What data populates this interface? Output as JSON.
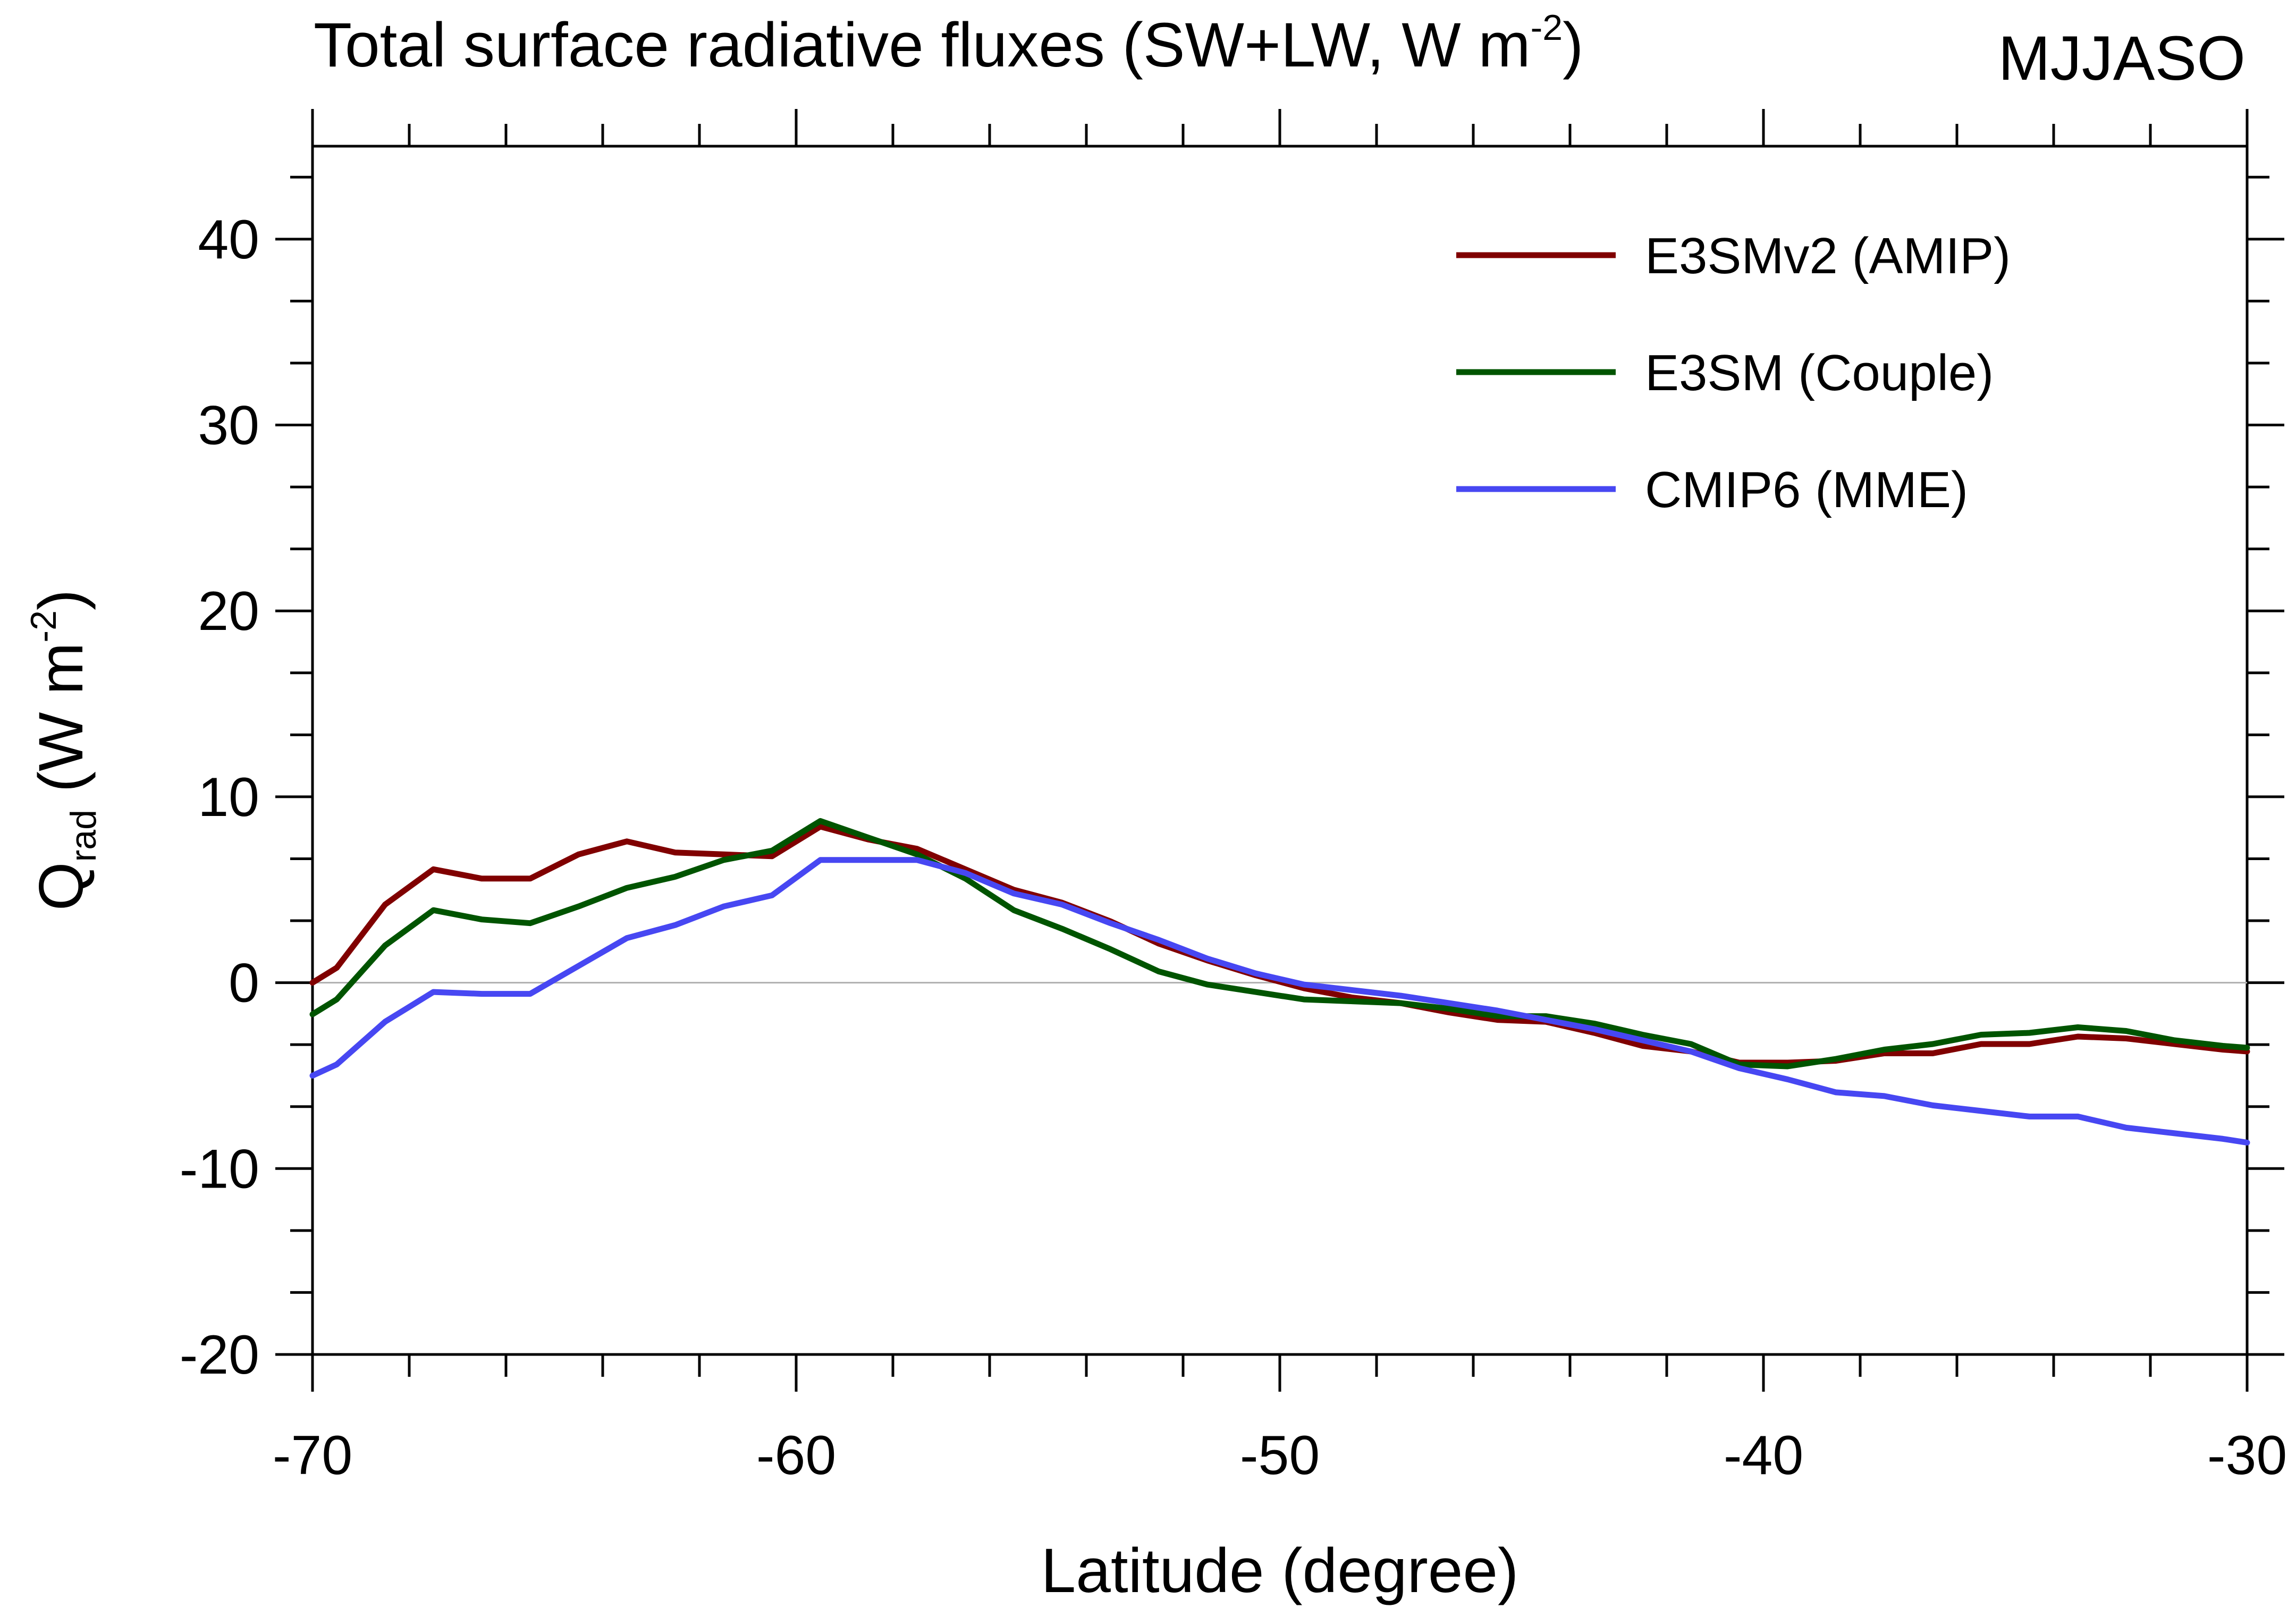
{
  "chart_data": {
    "type": "line",
    "title": "Total surface radiative fluxes (SW+LW, W m",
    "title_superscript": "-2",
    "title_suffix": ")",
    "season_label": "MJJASO",
    "xlabel": "Latitude (degree)",
    "ylabel_main": "Q",
    "ylabel_subscript": "rad",
    "ylabel_units": " (W m",
    "ylabel_superscript": "-2",
    "ylabel_suffix": ")",
    "xlim": [
      -70,
      -30
    ],
    "ylim": [
      -20,
      45
    ],
    "xticks": [
      -70,
      -60,
      -50,
      -40,
      -30
    ],
    "xtick_labels": [
      "-70",
      "-60",
      "-50",
      "-40",
      "-30"
    ],
    "yticks": [
      -20,
      -10,
      0,
      10,
      20,
      30,
      40
    ],
    "ytick_labels": [
      "-20",
      "-10",
      "0",
      "10",
      "20",
      "30",
      "40"
    ],
    "zero_line": true,
    "legend_position": "top-right",
    "series": [
      {
        "name": "E3SMv2 (AMIP)",
        "color": "#800000",
        "x": [
          -70,
          -69.5,
          -68.5,
          -67.5,
          -66.5,
          -65.5,
          -64.5,
          -63.5,
          -62.5,
          -61.5,
          -60.5,
          -59.5,
          -58.5,
          -57.5,
          -56.5,
          -55.5,
          -54.5,
          -53.5,
          -52.5,
          -51.5,
          -50.5,
          -49.5,
          -48.5,
          -47.5,
          -46.5,
          -45.5,
          -44.5,
          -43.5,
          -42.5,
          -41.5,
          -40.5,
          -39.5,
          -38.5,
          -37.5,
          -36.5,
          -35.5,
          -34.5,
          -33.5,
          -32.5,
          -31.5,
          -30.5,
          -30
        ],
        "values": [
          0,
          0.8,
          4.2,
          6.1,
          5.6,
          5.6,
          6.9,
          7.6,
          7.0,
          6.9,
          6.8,
          8.4,
          7.7,
          7.2,
          6.1,
          5.0,
          4.3,
          3.3,
          2.1,
          1.2,
          0.4,
          -0.3,
          -0.8,
          -1.1,
          -1.6,
          -2.0,
          -2.1,
          -2.7,
          -3.4,
          -3.7,
          -4.3,
          -4.3,
          -4.2,
          -3.8,
          -3.8,
          -3.3,
          -3.3,
          -2.9,
          -3.0,
          -3.3,
          -3.6,
          -3.7
        ]
      },
      {
        "name": "E3SM (Couple)",
        "color": "#005400",
        "x": [
          -70,
          -69.5,
          -68.5,
          -67.5,
          -66.5,
          -65.5,
          -64.5,
          -63.5,
          -62.5,
          -61.5,
          -60.5,
          -59.5,
          -58.5,
          -57.5,
          -56.5,
          -55.5,
          -54.5,
          -53.5,
          -52.5,
          -51.5,
          -50.5,
          -49.5,
          -48.5,
          -47.5,
          -46.5,
          -45.5,
          -44.5,
          -43.5,
          -42.5,
          -41.5,
          -40.5,
          -39.5,
          -38.5,
          -37.5,
          -36.5,
          -35.5,
          -34.5,
          -33.5,
          -32.5,
          -31.5,
          -30.5,
          -30
        ],
        "values": [
          -1.7,
          -0.9,
          2.0,
          3.9,
          3.4,
          3.2,
          4.1,
          5.1,
          5.7,
          6.6,
          7.1,
          8.7,
          7.8,
          6.9,
          5.6,
          3.9,
          2.9,
          1.8,
          0.6,
          -0.1,
          -0.5,
          -0.9,
          -1.0,
          -1.1,
          -1.4,
          -1.8,
          -1.8,
          -2.2,
          -2.8,
          -3.3,
          -4.4,
          -4.5,
          -4.1,
          -3.6,
          -3.3,
          -2.8,
          -2.7,
          -2.4,
          -2.6,
          -3.1,
          -3.4,
          -3.5
        ]
      },
      {
        "name": "CMIP6 (MME)",
        "color": "#4747f2",
        "x": [
          -70,
          -69.5,
          -68.5,
          -67.5,
          -66.5,
          -65.5,
          -64.5,
          -63.5,
          -62.5,
          -61.5,
          -60.5,
          -59.5,
          -58.5,
          -57.5,
          -56.5,
          -55.5,
          -54.5,
          -53.5,
          -52.5,
          -51.5,
          -50.5,
          -49.5,
          -48.5,
          -47.5,
          -46.5,
          -45.5,
          -44.5,
          -43.5,
          -42.5,
          -41.5,
          -40.5,
          -39.5,
          -38.5,
          -37.5,
          -36.5,
          -35.5,
          -34.5,
          -33.5,
          -32.5,
          -31.5,
          -30.5,
          -30
        ],
        "values": [
          -5.0,
          -4.4,
          -2.1,
          -0.5,
          -0.6,
          -0.6,
          0.9,
          2.4,
          3.1,
          4.1,
          4.7,
          6.6,
          6.6,
          6.6,
          5.9,
          4.8,
          4.2,
          3.2,
          2.3,
          1.3,
          0.5,
          -0.1,
          -0.4,
          -0.7,
          -1.1,
          -1.5,
          -2.0,
          -2.5,
          -3.1,
          -3.7,
          -4.6,
          -5.2,
          -5.9,
          -6.1,
          -6.6,
          -6.9,
          -7.2,
          -7.2,
          -7.8,
          -8.1,
          -8.4,
          -8.6
        ]
      }
    ]
  }
}
